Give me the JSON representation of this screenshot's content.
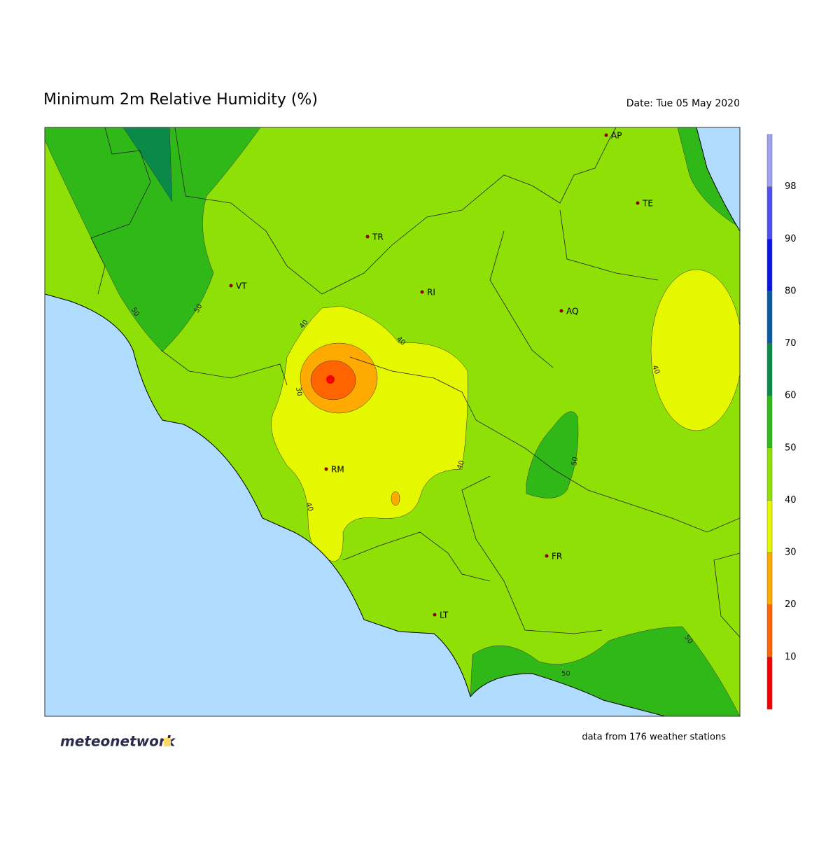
{
  "header": {
    "title": "Minimum 2m Relative Humidity (%)",
    "date": "Date: Tue 05 May 2020"
  },
  "cities": [
    "AP",
    "TE",
    "TR",
    "VT",
    "RI",
    "AQ",
    "RM",
    "FR",
    "LT"
  ],
  "contour_labels": [
    "50",
    "50",
    "40",
    "40",
    "30",
    "40",
    "40",
    "40",
    "50",
    "50",
    "50"
  ],
  "colorbar": {
    "ticks": [
      10,
      20,
      30,
      40,
      50,
      60,
      70,
      80,
      90,
      98
    ],
    "colors": [
      "#f00000",
      "#ff6400",
      "#ffaa00",
      "#e6f800",
      "#8ee006",
      "#30b818",
      "#0a8a48",
      "#0a5aa0",
      "#0a14e0",
      "#5050f0",
      "#a0a0f0"
    ]
  },
  "footer": {
    "logo": "meteonetwork",
    "note": "data from 176 weather stations"
  }
}
